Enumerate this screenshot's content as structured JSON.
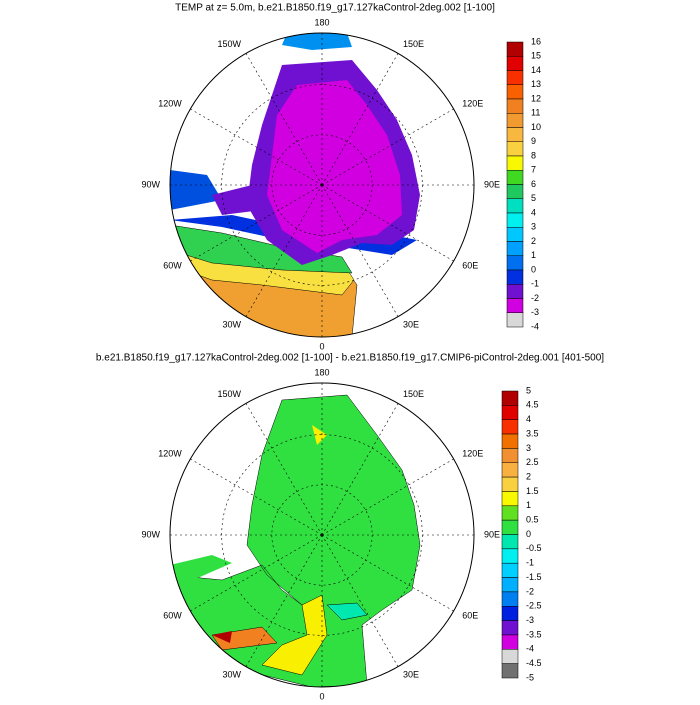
{
  "panels": [
    {
      "title": "TEMP at z=   5.0m, b.e21.B1850.f19_g17.127kaControl-2deg.002 [1-100]",
      "lon_labels": [
        "180",
        "150E",
        "120E",
        "90E",
        "60E",
        "30E",
        "0",
        "30W",
        "60W",
        "90W",
        "120W",
        "150W"
      ],
      "colorbar": {
        "labels": [
          16,
          15,
          14,
          13,
          12,
          11,
          10,
          9,
          8,
          7,
          6,
          5,
          4,
          3,
          2,
          1,
          0,
          -1,
          -2,
          -3,
          -4
        ],
        "colors": [
          "#b00000",
          "#e00000",
          "#f83000",
          "#f86000",
          "#f08020",
          "#f09a30",
          "#f8b840",
          "#f8d040",
          "#f8f800",
          "#40d820",
          "#20c860",
          "#00e0c0",
          "#00f0f0",
          "#00c8ff",
          "#00a0ff",
          "#0070f0",
          "#0030e0",
          "#7010d0",
          "#d000e0",
          "#d8d8d8"
        ]
      }
    },
    {
      "title": "b.e21.B1850.f19_g17.127kaControl-2deg.002 [1-100] - b.e21.B1850.f19_g17.CMIP6-piControl-2deg.001 [401-500]",
      "lon_labels": [
        "180",
        "150E",
        "120E",
        "90E",
        "60E",
        "30E",
        "0",
        "30W",
        "60W",
        "90W",
        "120W",
        "150W"
      ],
      "colorbar": {
        "labels": [
          5,
          4.5,
          4,
          3.5,
          3,
          2.5,
          2,
          1.5,
          1,
          0.5,
          0,
          -0.5,
          -1,
          -1.5,
          -2,
          -2.5,
          -3,
          -3.5,
          -4,
          -4.5,
          -5
        ],
        "colors": [
          "#b00000",
          "#e00000",
          "#f83000",
          "#f07000",
          "#f09030",
          "#f8b040",
          "#f8d040",
          "#f8f800",
          "#60e020",
          "#30e040",
          "#00e8b0",
          "#00f0f0",
          "#00d0ff",
          "#00b0ff",
          "#0080f0",
          "#0020e0",
          "#7010d0",
          "#d000e0",
          "#d8d8d8",
          "#707070"
        ]
      }
    }
  ]
}
